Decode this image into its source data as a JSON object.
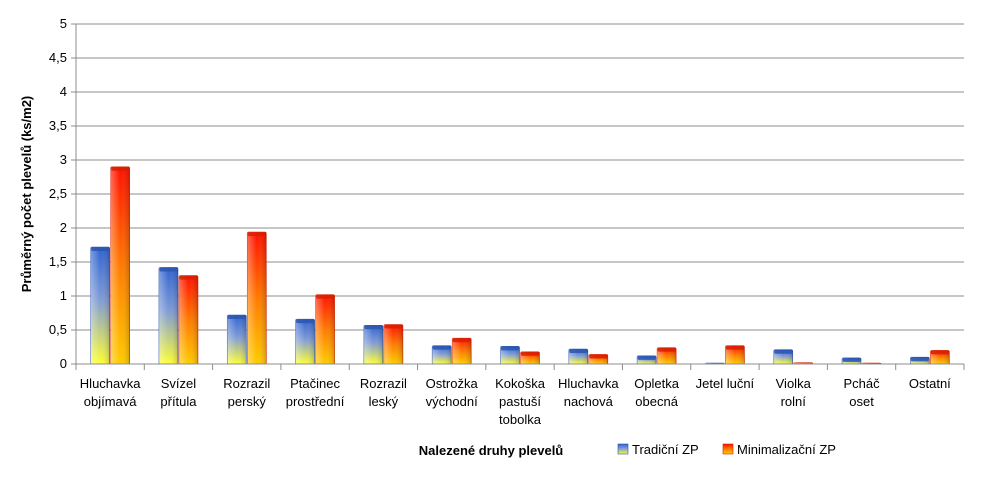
{
  "chart_data": {
    "type": "bar",
    "xlabel": "Nalezené druhy plevelů",
    "ylabel": "Průměrný počet plevelů (ks/m2)",
    "ylim": [
      0,
      5
    ],
    "yticks": [
      0,
      0.5,
      1,
      1.5,
      2,
      2.5,
      3,
      3.5,
      4,
      4.5,
      5
    ],
    "ytick_labels": [
      "0",
      "0,5",
      "1",
      "1,5",
      "2",
      "2,5",
      "3",
      "3,5",
      "4",
      "4,5",
      "5"
    ],
    "grid": true,
    "legend_position": "bottom-right",
    "categories": [
      [
        "Hluchavka",
        "objímavá"
      ],
      [
        "Svízel",
        "přítula"
      ],
      [
        "Rozrazil",
        "perský"
      ],
      [
        "Ptačinec",
        "prostřední"
      ],
      [
        "Rozrazil",
        "leský"
      ],
      [
        "Ostrožka",
        "východní"
      ],
      [
        "Kokoška",
        "pastuší",
        "tobolka"
      ],
      [
        "Hluchavka",
        "nachová"
      ],
      [
        "Opletka",
        "obecná"
      ],
      [
        "Jetel luční"
      ],
      [
        "Violka",
        "rolní"
      ],
      [
        "Pcháč",
        "oset"
      ],
      [
        "Ostatní"
      ]
    ],
    "series": [
      {
        "name": "Tradiční ZP",
        "colors": {
          "top": "#3a6fd8",
          "bottom": "#ffff40"
        },
        "values": [
          1.72,
          1.42,
          0.72,
          0.66,
          0.57,
          0.27,
          0.26,
          0.22,
          0.12,
          0.01,
          0.21,
          0.09,
          0.1
        ]
      },
      {
        "name": "Minimalizační ZP",
        "colors": {
          "top": "#ff1a00",
          "bottom": "#ffcc00"
        },
        "values": [
          2.9,
          1.3,
          1.94,
          1.02,
          0.58,
          0.38,
          0.18,
          0.14,
          0.24,
          0.27,
          0.02,
          0.01,
          0.2
        ]
      }
    ]
  }
}
